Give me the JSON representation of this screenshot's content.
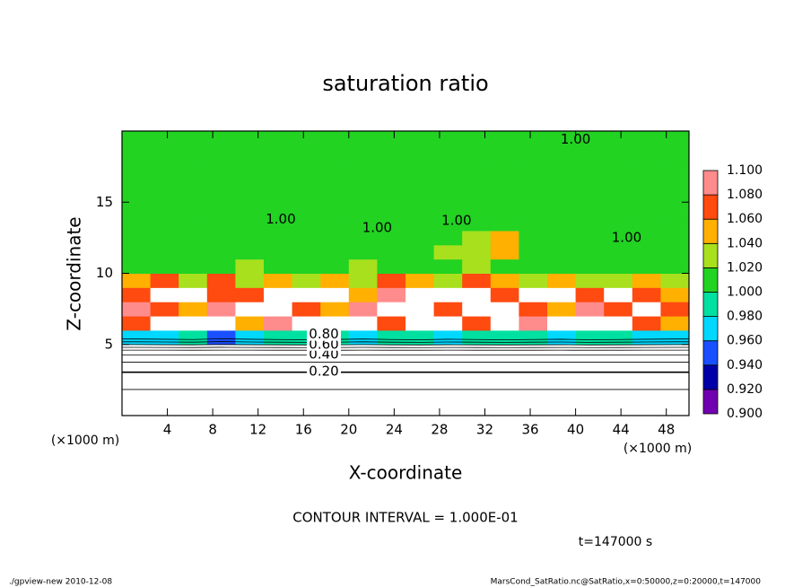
{
  "chart_data": {
    "type": "contour",
    "title": "saturation ratio",
    "x_label": "X-coordinate",
    "y_label": "Z-coordinate",
    "x_unit": "(×1000 m)",
    "y_unit": "(×1000 m)",
    "contour_note": "CONTOUR INTERVAL = 1.000E-01",
    "contour_interval": 0.1,
    "time_label": "t=147000 s",
    "footer_left": "./gpview-new  2010-12-08",
    "footer_right": "MarsCond_SatRatio.nc@SatRatio,x=0:50000,z=0:20000,t=147000",
    "xlim": [
      0,
      50
    ],
    "ylim": [
      0,
      20
    ],
    "xticks": [
      4,
      8,
      12,
      16,
      20,
      24,
      28,
      32,
      36,
      40,
      44,
      48
    ],
    "yticks": [
      5,
      10,
      15
    ],
    "x": [
      1.25,
      3.75,
      6.25,
      8.75,
      11.25,
      13.75,
      16.25,
      18.75,
      21.25,
      23.75,
      26.25,
      28.75,
      31.25,
      33.75,
      36.25,
      38.75,
      41.25,
      43.75,
      46.25,
      48.75
    ],
    "z": [
      0.5,
      1.5,
      2.5,
      3.5,
      4.5,
      5.5,
      6.5,
      7.5,
      8.5,
      9.5,
      10.5,
      11.5,
      12.5,
      13.5,
      14.5,
      15.5,
      16.5,
      17.5,
      18.5,
      19.5
    ],
    "field": {
      "values": [
        [
          0.03,
          0.03,
          0.03,
          0.03,
          0.03,
          0.03,
          0.03,
          0.03,
          0.03,
          0.03,
          0.03,
          0.03,
          0.03,
          0.03,
          0.03,
          0.03,
          0.03,
          0.03,
          0.03,
          0.03
        ],
        [
          0.08,
          0.08,
          0.08,
          0.08,
          0.08,
          0.08,
          0.08,
          0.08,
          0.08,
          0.08,
          0.08,
          0.08,
          0.08,
          0.08,
          0.08,
          0.08,
          0.08,
          0.08,
          0.08,
          0.08
        ],
        [
          0.14,
          0.14,
          0.14,
          0.14,
          0.14,
          0.14,
          0.14,
          0.14,
          0.14,
          0.14,
          0.14,
          0.14,
          0.14,
          0.14,
          0.14,
          0.14,
          0.14,
          0.14,
          0.14,
          0.14
        ],
        [
          0.25,
          0.25,
          0.25,
          0.25,
          0.25,
          0.25,
          0.25,
          0.25,
          0.25,
          0.25,
          0.25,
          0.25,
          0.25,
          0.25,
          0.25,
          0.25,
          0.25,
          0.25,
          0.25,
          0.25
        ],
        [
          0.45,
          0.45,
          0.45,
          0.45,
          0.45,
          0.45,
          0.45,
          0.45,
          0.45,
          0.45,
          0.45,
          0.45,
          0.45,
          0.45,
          0.45,
          0.45,
          0.45,
          0.45,
          0.45,
          0.45
        ],
        [
          0.96,
          0.97,
          0.98,
          0.95,
          0.97,
          0.98,
          0.99,
          0.98,
          0.96,
          0.98,
          0.99,
          0.97,
          0.98,
          0.99,
          0.98,
          0.97,
          0.99,
          0.98,
          0.97,
          0.96
        ],
        [
          1.06,
          1.12,
          1.12,
          1.12,
          1.05,
          1.08,
          1.12,
          1.12,
          1.12,
          1.07,
          1.12,
          1.12,
          1.06,
          1.12,
          1.08,
          1.12,
          1.12,
          1.12,
          1.07,
          1.05
        ],
        [
          1.08,
          1.06,
          1.04,
          1.08,
          1.12,
          1.12,
          1.07,
          1.04,
          1.08,
          1.12,
          1.12,
          1.06,
          1.12,
          1.12,
          1.07,
          1.05,
          1.08,
          1.06,
          1.12,
          1.07
        ],
        [
          1.07,
          1.12,
          1.12,
          1.06,
          1.07,
          1.12,
          1.12,
          1.12,
          1.05,
          1.08,
          1.12,
          1.12,
          1.12,
          1.06,
          1.12,
          1.12,
          1.07,
          1.12,
          1.06,
          1.04
        ],
        [
          1.04,
          1.06,
          1.02,
          1.07,
          1.03,
          1.05,
          1.02,
          1.04,
          1.03,
          1.06,
          1.05,
          1.03,
          1.07,
          1.04,
          1.02,
          1.05,
          1.03,
          1.02,
          1.04,
          1.03
        ],
        [
          1.0,
          1.01,
          1.0,
          1.01,
          1.02,
          1.0,
          1.01,
          1.0,
          1.02,
          1.01,
          1.0,
          1.01,
          1.03,
          1.01,
          1.0,
          1.01,
          1.0,
          1.01,
          1.0,
          1.0
        ],
        [
          1.0,
          1.0,
          1.0,
          1.0,
          1.0,
          1.01,
          1.0,
          1.0,
          1.0,
          1.0,
          1.01,
          1.02,
          1.03,
          1.04,
          1.01,
          1.0,
          1.0,
          1.0,
          1.0,
          1.0
        ],
        [
          1.0,
          1.0,
          1.0,
          1.0,
          1.0,
          1.0,
          1.0,
          1.0,
          1.0,
          1.0,
          1.0,
          1.01,
          1.02,
          1.05,
          1.01,
          1.0,
          1.0,
          1.0,
          1.0,
          1.0
        ],
        [
          1.0,
          1.0,
          1.0,
          1.0,
          1.0,
          1.0,
          1.0,
          1.0,
          1.0,
          1.0,
          1.0,
          1.0,
          1.0,
          1.0,
          1.0,
          1.0,
          1.0,
          1.0,
          1.0,
          1.0
        ],
        [
          1.0,
          1.0,
          1.0,
          1.0,
          1.0,
          1.0,
          1.0,
          1.0,
          1.0,
          1.0,
          1.0,
          1.0,
          1.0,
          1.0,
          1.0,
          1.0,
          1.0,
          1.0,
          1.0,
          1.0
        ],
        [
          1.0,
          1.0,
          1.0,
          1.0,
          1.0,
          1.0,
          1.0,
          1.0,
          1.0,
          1.0,
          1.0,
          1.0,
          1.0,
          1.0,
          1.0,
          1.0,
          1.0,
          1.0,
          1.0,
          1.0
        ],
        [
          1.0,
          1.0,
          1.0,
          1.0,
          1.0,
          1.0,
          1.0,
          1.0,
          1.0,
          1.0,
          1.0,
          1.0,
          1.0,
          1.0,
          1.0,
          1.0,
          1.0,
          1.0,
          1.0,
          1.0
        ],
        [
          1.0,
          1.0,
          1.0,
          1.0,
          1.0,
          1.0,
          1.0,
          1.0,
          1.0,
          1.0,
          1.0,
          1.0,
          1.0,
          1.0,
          1.0,
          1.0,
          1.0,
          1.0,
          1.0,
          1.0
        ],
        [
          1.0,
          1.0,
          1.0,
          1.0,
          1.0,
          1.0,
          1.0,
          1.0,
          1.0,
          1.0,
          1.0,
          1.0,
          1.0,
          1.0,
          1.0,
          1.0,
          1.0,
          1.0,
          1.0,
          1.0
        ],
        [
          1.0,
          1.0,
          1.0,
          1.0,
          1.0,
          1.0,
          1.0,
          1.0,
          1.0,
          1.0,
          1.0,
          1.0,
          1.0,
          1.0,
          1.0,
          1.0,
          1.0,
          1.0,
          1.0,
          1.0
        ]
      ]
    },
    "contour_labels": [
      {
        "value": 0.2,
        "label": "0.20",
        "x": 17.8,
        "z": 3.1
      },
      {
        "value": 0.4,
        "label": "0.40",
        "x": 17.8,
        "z": 4.3
      },
      {
        "value": 0.6,
        "label": "0.60",
        "x": 17.8,
        "z": 5.0
      },
      {
        "value": 0.8,
        "label": "0.80",
        "x": 17.8,
        "z": 5.7
      },
      {
        "value": 1.0,
        "label": "1.00",
        "x": 14.0,
        "z": 13.8
      },
      {
        "value": 1.0,
        "label": "1.00",
        "x": 22.5,
        "z": 13.2
      },
      {
        "value": 1.0,
        "label": "1.00",
        "x": 29.5,
        "z": 13.7
      },
      {
        "value": 1.0,
        "label": "1.00",
        "x": 44.5,
        "z": 12.5
      },
      {
        "value": 1.0,
        "label": "1.00",
        "x": 40.0,
        "z": 19.4
      }
    ],
    "colorbar": {
      "ticks": [
        {
          "value": 0.9,
          "label": "0.900"
        },
        {
          "value": 0.92,
          "label": "0.920"
        },
        {
          "value": 0.94,
          "label": "0.940"
        },
        {
          "value": 0.96,
          "label": "0.960"
        },
        {
          "value": 0.98,
          "label": "0.980"
        },
        {
          "value": 1.0,
          "label": "1.000"
        },
        {
          "value": 1.02,
          "label": "1.020"
        },
        {
          "value": 1.04,
          "label": "1.040"
        },
        {
          "value": 1.06,
          "label": "1.060"
        },
        {
          "value": 1.08,
          "label": "1.080"
        },
        {
          "value": 1.1,
          "label": "1.100"
        }
      ],
      "colors": [
        "#7000b0",
        "#0000a8",
        "#1a50ff",
        "#00d8ff",
        "#00e0a0",
        "#22d322",
        "#a8e01e",
        "#ffb000",
        "#ff4a10",
        "#ff8c8c"
      ],
      "outside_color": "#ffffff"
    }
  }
}
